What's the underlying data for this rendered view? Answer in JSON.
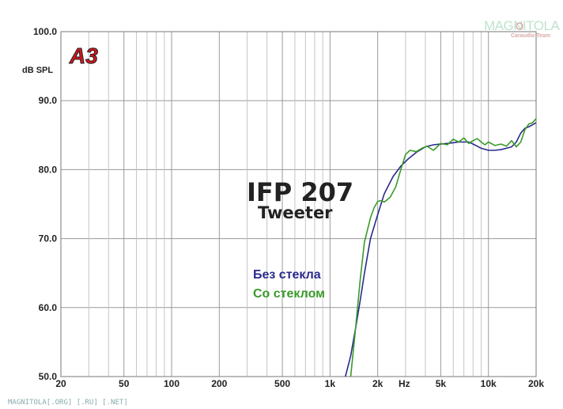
{
  "logo": {
    "text": "A3",
    "color": "#d4161c"
  },
  "watermark": {
    "text": "MAGNITOLA",
    "subtext": "Caraudio Team"
  },
  "footer": "MAGNITOLA[.ORG] [.RU] [.NET]",
  "chart_data": {
    "type": "line",
    "title": "IFP 207",
    "subtitle": "Tweeter",
    "ylabel": "dB SPL",
    "xlabel": "Hz",
    "xscale": "log",
    "xlim": [
      20,
      20000
    ],
    "ylim": [
      50,
      100
    ],
    "grid": true,
    "y_ticks": [
      {
        "value": 100,
        "label": "100.0"
      },
      {
        "value": 90,
        "label": "90.0"
      },
      {
        "value": 80,
        "label": "80.0"
      },
      {
        "value": 70,
        "label": "70.0"
      },
      {
        "value": 60,
        "label": "60.0"
      },
      {
        "value": 50,
        "label": "50.0"
      }
    ],
    "x_ticks": [
      {
        "value": 20,
        "label": "20"
      },
      {
        "value": 50,
        "label": "50"
      },
      {
        "value": 100,
        "label": "100"
      },
      {
        "value": 200,
        "label": "200"
      },
      {
        "value": 500,
        "label": "500"
      },
      {
        "value": 1000,
        "label": "1k"
      },
      {
        "value": 2000,
        "label": "2k"
      },
      {
        "value": 5000,
        "label": "5k"
      },
      {
        "value": 10000,
        "label": "10k"
      },
      {
        "value": 20000,
        "label": "20k"
      }
    ],
    "series": [
      {
        "name": "Без стекла",
        "color": "#2a2a8c",
        "x": [
          1250,
          1350,
          1450,
          1550,
          1650,
          1800,
          2000,
          2200,
          2500,
          2800,
          3100,
          3500,
          4000,
          4500,
          5000,
          5500,
          6000,
          6500,
          7000,
          7500,
          8000,
          8500,
          9000,
          10000,
          11000,
          12000,
          13000,
          14000,
          15000,
          16000,
          17000,
          18000,
          19000,
          20000
        ],
        "y": [
          50,
          53,
          57,
          61,
          65,
          70,
          73.5,
          76.5,
          79,
          80.5,
          81.5,
          82.5,
          83.3,
          83.6,
          83.7,
          83.8,
          83.9,
          84,
          84,
          84,
          83.7,
          83.4,
          83.1,
          82.8,
          82.8,
          82.9,
          83.1,
          83.3,
          84,
          85.3,
          86,
          86.2,
          86.5,
          86.8
        ]
      },
      {
        "name": "Со стеклом",
        "color": "#3a9a2a",
        "x": [
          1350,
          1450,
          1550,
          1650,
          1800,
          1900,
          2000,
          2100,
          2200,
          2400,
          2600,
          2800,
          3000,
          3200,
          3500,
          3800,
          4100,
          4500,
          5000,
          5500,
          6000,
          6500,
          7000,
          7500,
          8000,
          8500,
          9000,
          9500,
          10000,
          11000,
          12000,
          13000,
          14000,
          15000,
          16000,
          17000,
          18000,
          19000,
          20000
        ],
        "y": [
          50,
          57,
          64,
          69.5,
          73,
          74.5,
          75.4,
          75.5,
          75.3,
          76,
          77.5,
          80,
          82.2,
          82.8,
          82.6,
          83.1,
          83.4,
          82.8,
          83.8,
          83.6,
          84.4,
          84.0,
          84.6,
          83.8,
          84.2,
          84.5,
          84.0,
          83.6,
          84.0,
          83.5,
          83.7,
          83.4,
          84.2,
          83.3,
          84.0,
          85.8,
          86.6,
          86.8,
          87.4
        ]
      }
    ]
  }
}
